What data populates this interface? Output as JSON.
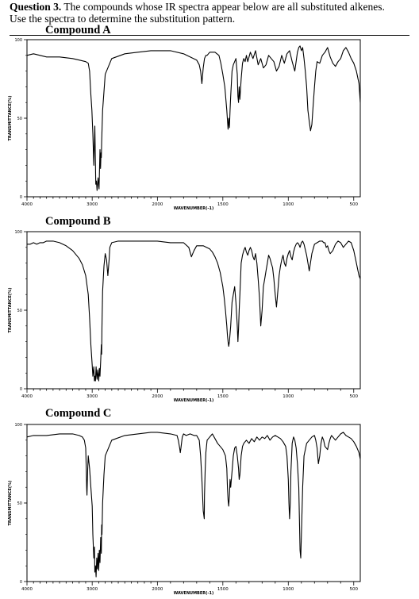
{
  "question": {
    "label": "Question 3.",
    "line1_rest": " The compounds whose IR spectra appear below are all substituted alkenes.",
    "line2": "Use the spectra to determine the substitution pattern."
  },
  "axis_common": {
    "x_ticks": [
      "4000",
      "3000",
      "2000",
      "1500",
      "1000",
      "500"
    ],
    "xlabel": "WAVENUMBER(-1)",
    "y_ticks": [
      "0",
      "50",
      "100"
    ]
  },
  "chart_data": [
    {
      "type": "line",
      "title": "Compound A",
      "ylabel": "TRANSMITTANCE(%)",
      "xlim": [
        4000,
        450
      ],
      "ylim": [
        0,
        100
      ],
      "series": [
        {
          "x": [
            4000,
            3900,
            3700,
            3500,
            3300,
            3200,
            3100,
            3060,
            3040,
            3020,
            3005,
            2990,
            2975,
            2960,
            2945,
            2935,
            2925,
            2910,
            2895,
            2880,
            2872,
            2865,
            2860,
            2855,
            2840,
            2800,
            2700,
            2500,
            2300,
            2100,
            2000,
            1900,
            1800,
            1700,
            1680,
            1670,
            1660,
            1650,
            1640,
            1630,
            1620,
            1600,
            1560,
            1530,
            1515,
            1500,
            1485,
            1470,
            1460,
            1455,
            1450,
            1445,
            1440,
            1430,
            1420,
            1400,
            1390,
            1385,
            1380,
            1375,
            1370,
            1360,
            1350,
            1340,
            1330,
            1320,
            1310,
            1290,
            1270,
            1250,
            1230,
            1210,
            1190,
            1170,
            1150,
            1130,
            1110,
            1090,
            1070,
            1050,
            1030,
            1010,
            990,
            970,
            950,
            930,
            920,
            910,
            900,
            890,
            880,
            870,
            860,
            850,
            840,
            830,
            820,
            810,
            800,
            790,
            780,
            760,
            740,
            720,
            700,
            680,
            660,
            640,
            620,
            600,
            580,
            560,
            540,
            520,
            500,
            480,
            460,
            450
          ],
          "y": [
            90,
            91,
            89,
            89,
            88,
            87,
            86,
            85,
            80,
            65,
            55,
            40,
            20,
            45,
            8,
            10,
            4,
            12,
            5,
            30,
            18,
            28,
            25,
            35,
            55,
            78,
            88,
            91,
            92,
            93,
            93,
            93,
            91,
            87,
            84,
            80,
            72,
            82,
            88,
            90,
            90,
            92,
            92,
            90,
            85,
            78,
            70,
            55,
            43,
            50,
            44,
            55,
            64,
            80,
            84,
            88,
            78,
            64,
            60,
            70,
            62,
            75,
            85,
            88,
            86,
            90,
            86,
            92,
            88,
            93,
            84,
            88,
            82,
            84,
            90,
            88,
            86,
            80,
            83,
            90,
            85,
            91,
            93,
            86,
            80,
            92,
            95,
            96,
            93,
            95,
            88,
            80,
            70,
            55,
            48,
            42,
            46,
            58,
            70,
            80,
            86,
            85,
            90,
            92,
            95,
            89,
            85,
            83,
            86,
            88,
            93,
            95,
            92,
            88,
            85,
            80,
            72,
            60
          ]
        }
      ]
    },
    {
      "type": "line",
      "title": "Compound B",
      "ylabel": "TRANSMITTANCE(%)",
      "xlim": [
        4000,
        450
      ],
      "ylim": [
        0,
        100
      ],
      "series": [
        {
          "x": [
            4000,
            3950,
            3900,
            3850,
            3800,
            3750,
            3700,
            3600,
            3500,
            3400,
            3300,
            3200,
            3150,
            3100,
            3060,
            3040,
            3020,
            3000,
            2990,
            2975,
            2965,
            2960,
            2950,
            2940,
            2930,
            2925,
            2915,
            2900,
            2890,
            2880,
            2870,
            2860,
            2855,
            2850,
            2840,
            2820,
            2800,
            2780,
            2760,
            2740,
            2730,
            2700,
            2600,
            2400,
            2200,
            2000,
            1900,
            1800,
            1760,
            1740,
            1720,
            1700,
            1650,
            1600,
            1580,
            1560,
            1540,
            1520,
            1500,
            1490,
            1480,
            1470,
            1465,
            1460,
            1455,
            1450,
            1440,
            1430,
            1420,
            1410,
            1400,
            1390,
            1385,
            1380,
            1375,
            1370,
            1365,
            1360,
            1350,
            1340,
            1330,
            1320,
            1310,
            1300,
            1290,
            1280,
            1270,
            1260,
            1250,
            1240,
            1230,
            1220,
            1210,
            1200,
            1190,
            1180,
            1170,
            1160,
            1150,
            1140,
            1130,
            1120,
            1110,
            1100,
            1090,
            1080,
            1070,
            1060,
            1050,
            1040,
            1030,
            1020,
            1010,
            1000,
            990,
            980,
            970,
            960,
            950,
            940,
            930,
            920,
            910,
            900,
            890,
            880,
            860,
            840,
            820,
            800,
            780,
            760,
            740,
            730,
            720,
            710,
            700,
            690,
            680,
            660,
            640,
            620,
            600,
            580,
            560,
            540,
            520,
            500,
            480,
            470,
            460,
            450
          ],
          "y": [
            92,
            92,
            93,
            92,
            93,
            93,
            94,
            94,
            93,
            91,
            88,
            83,
            79,
            72,
            60,
            45,
            28,
            15,
            8,
            14,
            5,
            8,
            5,
            14,
            8,
            6,
            12,
            5,
            13,
            8,
            18,
            28,
            22,
            40,
            62,
            78,
            86,
            82,
            72,
            82,
            90,
            93,
            94,
            94,
            94,
            94,
            93,
            93,
            90,
            84,
            88,
            91,
            91,
            89,
            87,
            84,
            80,
            74,
            65,
            58,
            50,
            40,
            34,
            30,
            27,
            30,
            40,
            55,
            60,
            65,
            55,
            40,
            30,
            38,
            50,
            60,
            70,
            80,
            85,
            88,
            90,
            87,
            85,
            88,
            90,
            88,
            84,
            82,
            86,
            80,
            70,
            58,
            40,
            50,
            65,
            70,
            75,
            80,
            85,
            83,
            80,
            77,
            70,
            60,
            52,
            62,
            72,
            78,
            82,
            85,
            80,
            78,
            83,
            86,
            88,
            84,
            82,
            87,
            90,
            92,
            93,
            92,
            90,
            93,
            94,
            92,
            85,
            75,
            86,
            92,
            93,
            94,
            94,
            93,
            93,
            90,
            91,
            88,
            86,
            88,
            92,
            94,
            93,
            90,
            92,
            94,
            93,
            88,
            80,
            76,
            72,
            70
          ]
        }
      ]
    },
    {
      "type": "line",
      "title": "Compound C",
      "ylabel": "TRANSMITTANCE(%)",
      "xlim": [
        4000,
        450
      ],
      "ylim": [
        0,
        100
      ],
      "series": [
        {
          "x": [
            4000,
            3900,
            3700,
            3500,
            3300,
            3200,
            3150,
            3120,
            3100,
            3090,
            3085,
            3080,
            3070,
            3060,
            3040,
            3020,
            3000,
            2990,
            2975,
            2965,
            2960,
            2950,
            2940,
            2930,
            2920,
            2910,
            2900,
            2890,
            2880,
            2870,
            2860,
            2855,
            2850,
            2840,
            2820,
            2800,
            2700,
            2500,
            2300,
            2100,
            2000,
            1900,
            1850,
            1840,
            1830,
            1825,
            1820,
            1810,
            1800,
            1780,
            1750,
            1720,
            1700,
            1680,
            1670,
            1660,
            1650,
            1642,
            1640,
            1635,
            1630,
            1620,
            1600,
            1580,
            1560,
            1540,
            1520,
            1500,
            1480,
            1470,
            1465,
            1460,
            1455,
            1450,
            1445,
            1440,
            1430,
            1420,
            1410,
            1400,
            1390,
            1380,
            1375,
            1370,
            1360,
            1350,
            1340,
            1320,
            1300,
            1280,
            1260,
            1240,
            1220,
            1200,
            1180,
            1160,
            1140,
            1120,
            1100,
            1080,
            1060,
            1040,
            1020,
            1010,
            1000,
            995,
            990,
            985,
            980,
            970,
            960,
            950,
            940,
            930,
            920,
            915,
            910,
            905,
            900,
            890,
            880,
            860,
            840,
            820,
            800,
            790,
            780,
            770,
            760,
            750,
            740,
            730,
            720,
            700,
            690,
            680,
            670,
            660,
            640,
            620,
            600,
            580,
            560,
            540,
            520,
            500,
            480,
            460,
            450
          ],
          "y": [
            92,
            93,
            93,
            94,
            94,
            93,
            92,
            90,
            85,
            70,
            60,
            55,
            70,
            80,
            72,
            60,
            48,
            30,
            15,
            22,
            6,
            10,
            3,
            15,
            8,
            18,
            7,
            20,
            12,
            28,
            18,
            36,
            30,
            50,
            68,
            80,
            90,
            93,
            94,
            95,
            95,
            94,
            93,
            90,
            85,
            82,
            85,
            92,
            94,
            93,
            94,
            93,
            93,
            90,
            80,
            65,
            45,
            40,
            55,
            70,
            82,
            90,
            92,
            94,
            91,
            88,
            86,
            84,
            80,
            72,
            60,
            52,
            48,
            55,
            65,
            60,
            70,
            80,
            85,
            86,
            80,
            72,
            65,
            68,
            80,
            86,
            88,
            90,
            88,
            91,
            89,
            92,
            90,
            92,
            91,
            93,
            90,
            92,
            93,
            92,
            91,
            89,
            86,
            80,
            65,
            50,
            40,
            50,
            70,
            88,
            92,
            90,
            85,
            75,
            60,
            40,
            20,
            15,
            30,
            60,
            80,
            88,
            90,
            92,
            93,
            90,
            85,
            75,
            80,
            88,
            92,
            90,
            86,
            84,
            88,
            91,
            93,
            92,
            90,
            92,
            94,
            95,
            93,
            92,
            91,
            89,
            86,
            82,
            78
          ]
        }
      ]
    }
  ]
}
